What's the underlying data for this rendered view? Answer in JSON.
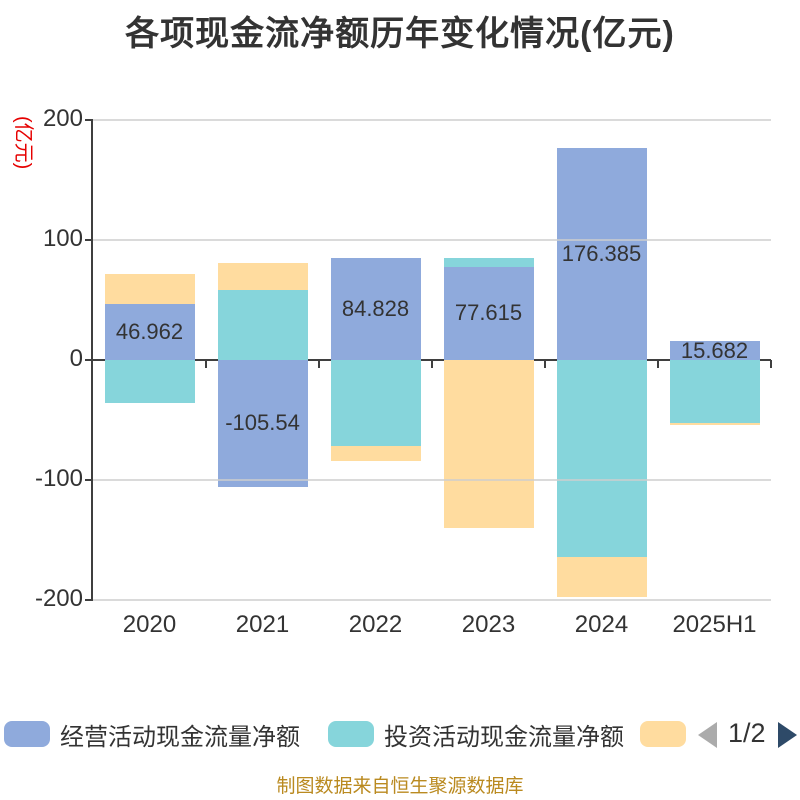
{
  "title": "各项现金流净额历年变化情况(亿元)",
  "y_axis": {
    "name": "(亿元)",
    "name_color": "#e60000",
    "tick_labels": [
      "200",
      "100",
      "0",
      "-100",
      "-200"
    ]
  },
  "chart_data": {
    "type": "bar",
    "stacked": true,
    "title": "各项现金流净额历年变化情况(亿元)",
    "unit": "亿元",
    "categories": [
      "2020",
      "2021",
      "2022",
      "2023",
      "2024",
      "2025H1"
    ],
    "series": [
      {
        "name": "经营活动现金流量净额",
        "color": "#8FAADC",
        "values": [
          46.962,
          -105.54,
          84.828,
          77.615,
          176.385,
          15.682
        ]
      },
      {
        "name": "投资活动现金流量净额",
        "color": "#86D5DB",
        "values": [
          -35.8,
          58.5,
          -71.7,
          7.1,
          -163.9,
          -52.5
        ]
      },
      {
        "name": "",
        "color": "#FFDC9F",
        "values": [
          24.7,
          22.5,
          -12.2,
          -140.3,
          -33.3,
          -1.5
        ]
      }
    ],
    "data_labels": [
      "46.962",
      "-105.54",
      "84.828",
      "77.615",
      "176.385",
      "15.682"
    ],
    "labeled_series_index": 0,
    "ylim": [
      -200,
      200
    ],
    "y_ticks": [
      200,
      100,
      0,
      -100,
      -200
    ],
    "grid": true,
    "legend_position": "bottom"
  },
  "legend": {
    "items": [
      {
        "label": "经营活动现金流量净额",
        "color": "#8FAADC"
      },
      {
        "label": "投资活动现金流量净额",
        "color": "#86D5DB"
      },
      {
        "label": "",
        "color": "#FFDC9F"
      }
    ],
    "pager": {
      "text": "1/2",
      "prev_color": "#ababab",
      "next_color": "#2e4a68"
    }
  },
  "footer": {
    "source": "制图数据来自恒生聚源数据库",
    "color": "#ba8a20"
  },
  "colors": {
    "axis": "#3f3f3f",
    "gridline": "#cdcdcd",
    "text": "#333333",
    "background": "#ffffff"
  }
}
